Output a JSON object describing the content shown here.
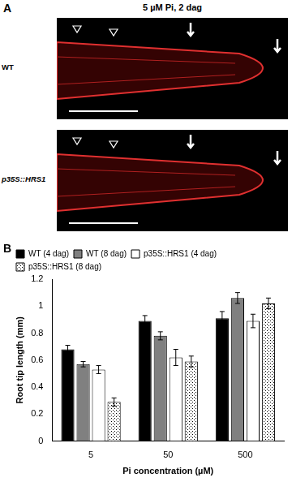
{
  "chart_data": {
    "type": "bar",
    "annotations": [
      "B"
    ],
    "x_label": "Pi concentration (µM)",
    "y_label": "Root tip length (mm)",
    "categories": [
      "5",
      "50",
      "500"
    ],
    "series": [
      {
        "name": "WT (4 dag)",
        "color": "#000000",
        "values": [
          0.68,
          0.89,
          0.91
        ],
        "errors": [
          0.03,
          0.04,
          0.05
        ]
      },
      {
        "name": "WT (8 dag)",
        "color": "#808080",
        "values": [
          0.57,
          0.78,
          1.06
        ],
        "errors": [
          0.02,
          0.03,
          0.04
        ]
      },
      {
        "name": "p35S::HRS1 (4 dag)",
        "color": "#ffffff",
        "values": [
          0.53,
          0.62,
          0.89
        ],
        "errors": [
          0.03,
          0.06,
          0.05
        ]
      },
      {
        "name": "p35S::HRS1 (8 dag)",
        "color": "#ffffff",
        "marker": "dots",
        "values": [
          0.29,
          0.59,
          1.02
        ],
        "errors": [
          0.03,
          0.04,
          0.04
        ]
      }
    ],
    "ylim": [
      0,
      1.2
    ],
    "yticks": [
      0,
      0.2,
      0.4,
      0.6,
      0.8,
      1,
      1.2
    ],
    "legend": "upper left",
    "grid": false
  },
  "panel_a": {
    "label": "A",
    "title": "5 µM Pi, 2 dag",
    "rows": [
      "WT",
      "p35S::HRS1"
    ]
  }
}
